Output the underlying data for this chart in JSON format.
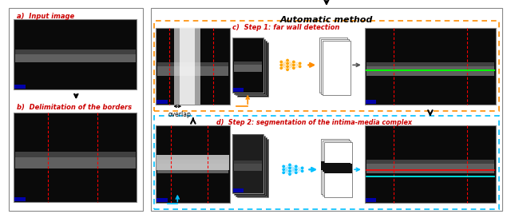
{
  "title": "Automatic method",
  "label_a": "a)  Input image",
  "label_b": "b)  Delimitation of the borders",
  "label_c": "c)  Step 1: far wall detection",
  "label_d": "d)  Step 2: segmentation of the intima-media complex",
  "overlap_text": "overlap",
  "fig_width": 6.4,
  "fig_height": 2.68,
  "bg_color": "#ffffff",
  "orange_dash_color": "#FF8C00",
  "cyan_dash_color": "#00BFFF",
  "arrow_color": "#1a1a1a",
  "red_dash_color": "#FF0000",
  "label_color_a": "#CC0000",
  "label_color_b": "#CC0000",
  "label_color_c": "#CC0000",
  "label_color_d": "#CC0000",
  "title_color": "#000000",
  "green_line_color": "#00FF00",
  "red_line_color": "#FF0000",
  "cyan_line_color": "#00FFFF",
  "neural_net_orange": "#FFA500",
  "neural_net_cyan": "#00BFFF"
}
